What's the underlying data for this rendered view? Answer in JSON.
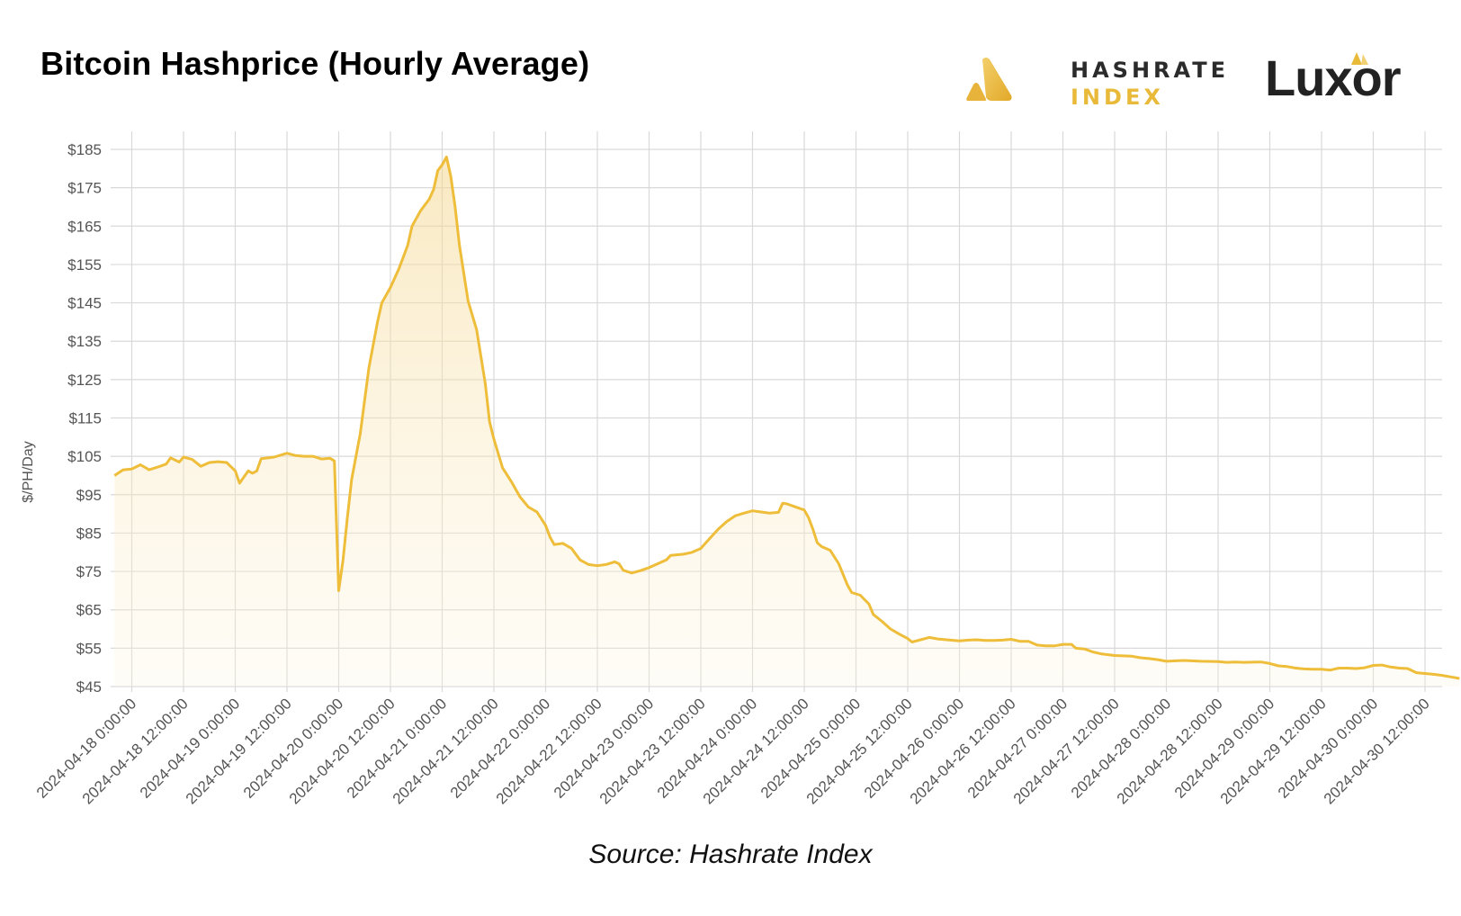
{
  "chart_data": {
    "type": "area",
    "title": "Bitcoin Hashprice (Hourly Average)",
    "ylabel": "$/PH/Day",
    "xlabel": "",
    "ylim": [
      45,
      185
    ],
    "yticks": [
      45,
      55,
      65,
      75,
      85,
      95,
      105,
      115,
      125,
      135,
      145,
      155,
      165,
      175,
      185
    ],
    "ytick_labels": [
      "$45",
      "$55",
      "$65",
      "$75",
      "$85",
      "$95",
      "$105",
      "$115",
      "$125",
      "$135",
      "$145",
      "$155",
      "$165",
      "$175",
      "$185"
    ],
    "x_start": "2024-04-17 20:00:00",
    "x_end": "2024-04-30 20:00:00",
    "xtick_labels": [
      "2024-04-18 0:00:00",
      "2024-04-18 12:00:00",
      "2024-04-19 0:00:00",
      "2024-04-19 12:00:00",
      "2024-04-20 0:00:00",
      "2024-04-20 12:00:00",
      "2024-04-21 0:00:00",
      "2024-04-21 12:00:00",
      "2024-04-22 0:00:00",
      "2024-04-22 12:00:00",
      "2024-04-23 0:00:00",
      "2024-04-23 12:00:00",
      "2024-04-24 0:00:00",
      "2024-04-24 12:00:00",
      "2024-04-25 0:00:00",
      "2024-04-25 12:00:00",
      "2024-04-26 0:00:00",
      "2024-04-26 12:00:00",
      "2024-04-27 0:00:00",
      "2024-04-27 12:00:00",
      "2024-04-28 0:00:00",
      "2024-04-28 12:00:00",
      "2024-04-29 0:00:00",
      "2024-04-29 12:00:00",
      "2024-04-30 0:00:00",
      "2024-04-30 12:00:00"
    ],
    "grid": true,
    "legend": "none",
    "series": [
      {
        "color": "#eebd3a",
        "points": [
          [
            "2024-04-17 20:00",
            100.0
          ],
          [
            "2024-04-17 22:00",
            101.5
          ],
          [
            "2024-04-18 00:00",
            101.7
          ],
          [
            "2024-04-18 02:00",
            102.8
          ],
          [
            "2024-04-18 04:00",
            101.5
          ],
          [
            "2024-04-18 06:00",
            102.2
          ],
          [
            "2024-04-18 08:00",
            103.0
          ],
          [
            "2024-04-18 09:00",
            104.6
          ],
          [
            "2024-04-18 11:00",
            103.5
          ],
          [
            "2024-04-18 12:00",
            104.8
          ],
          [
            "2024-04-18 14:00",
            104.2
          ],
          [
            "2024-04-18 16:00",
            102.4
          ],
          [
            "2024-04-18 18:00",
            103.4
          ],
          [
            "2024-04-18 20:00",
            103.6
          ],
          [
            "2024-04-18 22:00",
            103.4
          ],
          [
            "2024-04-19 00:00",
            101.2
          ],
          [
            "2024-04-19 01:00",
            98.0
          ],
          [
            "2024-04-19 03:00",
            101.2
          ],
          [
            "2024-04-19 04:00",
            100.6
          ],
          [
            "2024-04-19 05:00",
            101.2
          ],
          [
            "2024-04-19 06:00",
            104.4
          ],
          [
            "2024-04-19 09:00",
            104.8
          ],
          [
            "2024-04-19 12:00",
            105.8
          ],
          [
            "2024-04-19 14:00",
            105.2
          ],
          [
            "2024-04-19 16:00",
            105.0
          ],
          [
            "2024-04-19 18:00",
            105.0
          ],
          [
            "2024-04-19 20:00",
            104.3
          ],
          [
            "2024-04-19 22:00",
            104.5
          ],
          [
            "2024-04-19 23:00",
            103.8
          ],
          [
            "2024-04-20 00:00",
            70.0
          ],
          [
            "2024-04-20 01:00",
            78.0
          ],
          [
            "2024-04-20 02:00",
            89.0
          ],
          [
            "2024-04-20 03:00",
            99.0
          ],
          [
            "2024-04-20 05:00",
            111.0
          ],
          [
            "2024-04-20 07:00",
            128.0
          ],
          [
            "2024-04-20 09:00",
            140.0
          ],
          [
            "2024-04-20 10:00",
            145.0
          ],
          [
            "2024-04-20 12:00",
            149.0
          ],
          [
            "2024-04-20 14:00",
            154.0
          ],
          [
            "2024-04-20 16:00",
            160.0
          ],
          [
            "2024-04-20 17:00",
            165.0
          ],
          [
            "2024-04-20 19:00",
            169.0
          ],
          [
            "2024-04-20 21:00",
            172.0
          ],
          [
            "2024-04-20 22:00",
            174.5
          ],
          [
            "2024-04-20 23:00",
            179.5
          ],
          [
            "2024-04-21 00:00",
            181.0
          ],
          [
            "2024-04-21 01:00",
            183.0
          ],
          [
            "2024-04-21 02:00",
            178.0
          ],
          [
            "2024-04-21 03:00",
            170.0
          ],
          [
            "2024-04-21 04:00",
            160.0
          ],
          [
            "2024-04-21 06:00",
            145.5
          ],
          [
            "2024-04-21 08:00",
            138.0
          ],
          [
            "2024-04-21 10:00",
            124.0
          ],
          [
            "2024-04-21 11:00",
            114.0
          ],
          [
            "2024-04-21 12:00",
            109.5
          ],
          [
            "2024-04-21 14:00",
            102.0
          ],
          [
            "2024-04-21 16:00",
            98.5
          ],
          [
            "2024-04-21 18:00",
            94.5
          ],
          [
            "2024-04-21 20:00",
            91.8
          ],
          [
            "2024-04-21 22:00",
            90.5
          ],
          [
            "2024-04-22 00:00",
            87.0
          ],
          [
            "2024-04-22 01:00",
            84.0
          ],
          [
            "2024-04-22 02:00",
            82.0
          ],
          [
            "2024-04-22 04:00",
            82.3
          ],
          [
            "2024-04-22 06:00",
            81.0
          ],
          [
            "2024-04-22 08:00",
            78.0
          ],
          [
            "2024-04-22 10:00",
            76.8
          ],
          [
            "2024-04-22 12:00",
            76.5
          ],
          [
            "2024-04-22 14:00",
            76.8
          ],
          [
            "2024-04-22 16:00",
            77.5
          ],
          [
            "2024-04-22 17:00",
            77.0
          ],
          [
            "2024-04-22 18:00",
            75.3
          ],
          [
            "2024-04-22 20:00",
            74.6
          ],
          [
            "2024-04-22 22:00",
            75.2
          ],
          [
            "2024-04-23 00:00",
            76.0
          ],
          [
            "2024-04-23 02:00",
            77.0
          ],
          [
            "2024-04-23 04:00",
            78.0
          ],
          [
            "2024-04-23 05:00",
            79.2
          ],
          [
            "2024-04-23 08:00",
            79.5
          ],
          [
            "2024-04-23 10:00",
            80.0
          ],
          [
            "2024-04-23 12:00",
            81.0
          ],
          [
            "2024-04-23 14:00",
            83.5
          ],
          [
            "2024-04-23 16:00",
            86.0
          ],
          [
            "2024-04-23 18:00",
            88.0
          ],
          [
            "2024-04-23 20:00",
            89.5
          ],
          [
            "2024-04-23 22:00",
            90.2
          ],
          [
            "2024-04-24 00:00",
            90.8
          ],
          [
            "2024-04-24 02:00",
            90.5
          ],
          [
            "2024-04-24 04:00",
            90.2
          ],
          [
            "2024-04-24 06:00",
            90.4
          ],
          [
            "2024-04-24 07:00",
            92.8
          ],
          [
            "2024-04-24 08:00",
            92.6
          ],
          [
            "2024-04-24 10:00",
            91.8
          ],
          [
            "2024-04-24 12:00",
            91.0
          ],
          [
            "2024-04-24 13:00",
            89.0
          ],
          [
            "2024-04-24 14:00",
            86.0
          ],
          [
            "2024-04-24 15:00",
            82.5
          ],
          [
            "2024-04-24 16:00",
            81.5
          ],
          [
            "2024-04-24 18:00",
            80.5
          ],
          [
            "2024-04-24 20:00",
            77.0
          ],
          [
            "2024-04-24 22:00",
            71.5
          ],
          [
            "2024-04-24 23:00",
            69.5
          ],
          [
            "2024-04-25 01:00",
            68.8
          ],
          [
            "2024-04-25 03:00",
            66.5
          ],
          [
            "2024-04-25 04:00",
            63.8
          ],
          [
            "2024-04-25 06:00",
            62.0
          ],
          [
            "2024-04-25 08:00",
            60.0
          ],
          [
            "2024-04-25 10:00",
            58.7
          ],
          [
            "2024-04-25 12:00",
            57.5
          ],
          [
            "2024-04-25 13:00",
            56.6
          ],
          [
            "2024-04-25 15:00",
            57.2
          ],
          [
            "2024-04-25 17:00",
            57.8
          ],
          [
            "2024-04-25 19:00",
            57.4
          ],
          [
            "2024-04-25 21:00",
            57.2
          ],
          [
            "2024-04-26 00:00",
            56.9
          ],
          [
            "2024-04-26 02:00",
            57.1
          ],
          [
            "2024-04-26 04:00",
            57.2
          ],
          [
            "2024-04-26 06:00",
            57.0
          ],
          [
            "2024-04-26 08:00",
            57.0
          ],
          [
            "2024-04-26 10:00",
            57.1
          ],
          [
            "2024-04-26 12:00",
            57.3
          ],
          [
            "2024-04-26 14:00",
            56.8
          ],
          [
            "2024-04-26 16:00",
            56.8
          ],
          [
            "2024-04-26 18:00",
            55.8
          ],
          [
            "2024-04-26 20:00",
            55.6
          ],
          [
            "2024-04-26 22:00",
            55.6
          ],
          [
            "2024-04-27 00:00",
            56.0
          ],
          [
            "2024-04-27 02:00",
            56.0
          ],
          [
            "2024-04-27 03:00",
            55.0
          ],
          [
            "2024-04-27 05:00",
            54.8
          ],
          [
            "2024-04-27 07:00",
            54.0
          ],
          [
            "2024-04-27 09:00",
            53.5
          ],
          [
            "2024-04-27 12:00",
            53.1
          ],
          [
            "2024-04-27 16:00",
            52.9
          ],
          [
            "2024-04-27 18:00",
            52.5
          ],
          [
            "2024-04-27 20:00",
            52.3
          ],
          [
            "2024-04-27 22:00",
            52.0
          ],
          [
            "2024-04-28 00:00",
            51.6
          ],
          [
            "2024-04-28 04:00",
            51.8
          ],
          [
            "2024-04-28 08:00",
            51.6
          ],
          [
            "2024-04-28 12:00",
            51.5
          ],
          [
            "2024-04-28 14:00",
            51.3
          ],
          [
            "2024-04-28 16:00",
            51.4
          ],
          [
            "2024-04-28 18:00",
            51.3
          ],
          [
            "2024-04-28 22:00",
            51.4
          ],
          [
            "2024-04-29 00:00",
            51.0
          ],
          [
            "2024-04-29 02:00",
            50.4
          ],
          [
            "2024-04-29 04:00",
            50.2
          ],
          [
            "2024-04-29 06:00",
            49.8
          ],
          [
            "2024-04-29 08:00",
            49.6
          ],
          [
            "2024-04-29 10:00",
            49.5
          ],
          [
            "2024-04-29 12:00",
            49.5
          ],
          [
            "2024-04-29 14:00",
            49.3
          ],
          [
            "2024-04-29 16:00",
            49.8
          ],
          [
            "2024-04-29 18:00",
            49.8
          ],
          [
            "2024-04-29 20:00",
            49.7
          ],
          [
            "2024-04-29 22:00",
            49.9
          ],
          [
            "2024-04-30 00:00",
            50.5
          ],
          [
            "2024-04-30 02:00",
            50.6
          ],
          [
            "2024-04-30 04:00",
            50.1
          ],
          [
            "2024-04-30 06:00",
            49.8
          ],
          [
            "2024-04-30 08:00",
            49.7
          ],
          [
            "2024-04-30 10:00",
            48.6
          ],
          [
            "2024-04-30 12:00",
            48.4
          ],
          [
            "2024-04-30 14:00",
            48.2
          ],
          [
            "2024-04-30 16:00",
            47.9
          ],
          [
            "2024-04-30 18:00",
            47.5
          ],
          [
            "2024-04-30 20:00",
            47.1
          ]
        ]
      }
    ]
  },
  "header": {
    "title": "Bitcoin Hashprice (Hourly Average)"
  },
  "brands": {
    "hashrate_line1": "HASHRATE",
    "hashrate_line2": "INDEX",
    "luxor": "Luxor"
  },
  "footer": {
    "source": "Source: Hashrate Index"
  },
  "colors": {
    "line": "#eebd3a",
    "fill_top": "#f6dca0",
    "grid": "#d9d9d9",
    "brand_gold": "#e9b93a"
  },
  "icons": {
    "hashrate_logo": "hashrate-index-logo-icon",
    "luxor_logo": "luxor-logo-icon"
  }
}
